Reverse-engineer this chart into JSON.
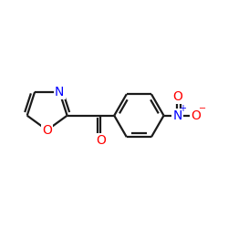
{
  "bg_color": "#ffffff",
  "bond_color": "#1a1a1a",
  "bond_width": 1.6,
  "atom_colors": {
    "O": "#ff0000",
    "N": "#0000ff"
  },
  "font_size_atom": 10,
  "font_size_charge": 7
}
